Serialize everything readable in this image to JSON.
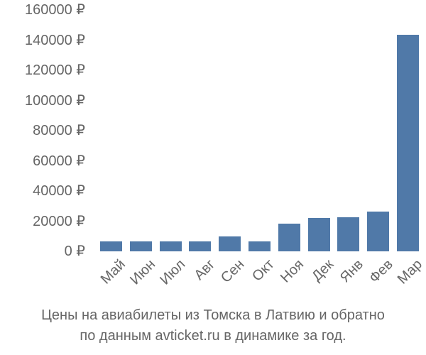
{
  "chart_data": {
    "type": "bar",
    "title": "Цены на авиабилеты из Томска в Латвию и обратно по данным avticket.ru в динамике за год.",
    "title_lines": [
      "Цены на авиабилеты из Томска в Латвию и обратно",
      "по данным avticket.ru в динамике за год."
    ],
    "xlabel": "",
    "ylabel": "",
    "categories": [
      "Май",
      "Июн",
      "Июл",
      "Авг",
      "Сен",
      "Окт",
      "Ноя",
      "Дек",
      "Янв",
      "Фев",
      "Мар"
    ],
    "values": [
      6600,
      6600,
      6600,
      6600,
      9900,
      6600,
      18400,
      22100,
      22600,
      26400,
      143500
    ],
    "ylim": [
      0,
      160000
    ],
    "yticks": [
      0,
      20000,
      40000,
      60000,
      80000,
      100000,
      120000,
      140000,
      160000
    ],
    "ytick_labels": [
      "0 ₽",
      "20000 ₽",
      "40000 ₽",
      "60000 ₽",
      "80000 ₽",
      "100000 ₽",
      "120000 ₽",
      "140000 ₽",
      "160000 ₽"
    ],
    "currency_symbol": "₽",
    "grid": false,
    "legend": null,
    "bar_color": "#5079a8",
    "text_color": "#666666"
  }
}
